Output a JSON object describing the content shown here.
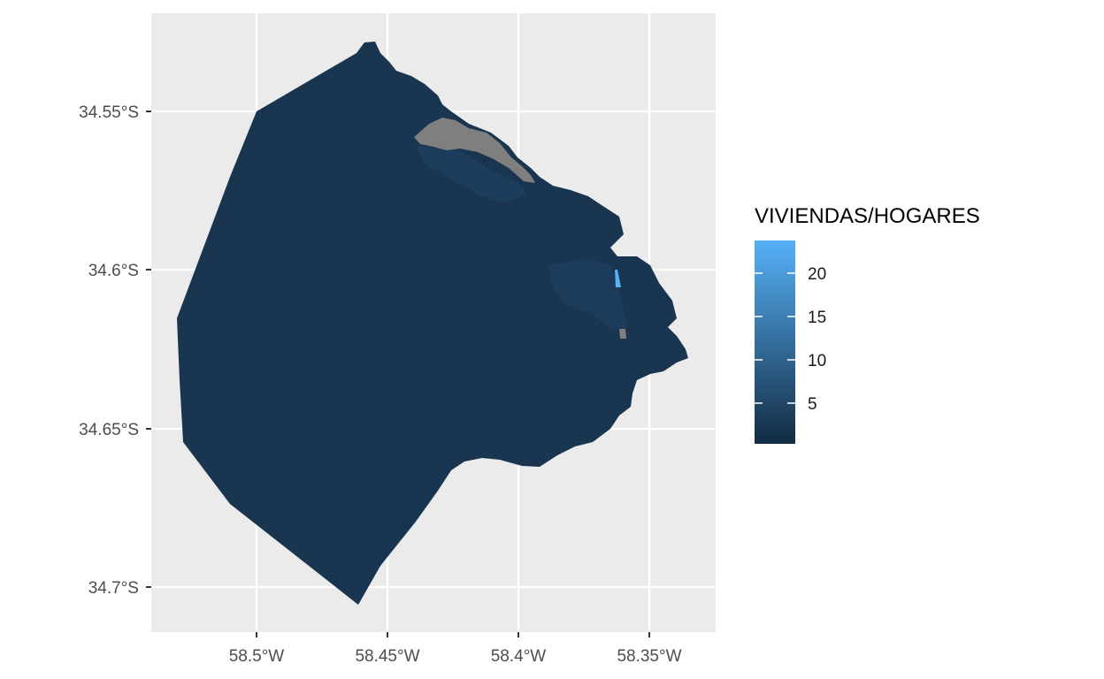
{
  "map": {
    "x_ticks": [
      "58.5°W",
      "58.45°W",
      "58.4°W",
      "58.35°W"
    ],
    "y_ticks": [
      "34.55°S",
      "34.6°S",
      "34.65°S",
      "34.7°S"
    ]
  },
  "legend": {
    "title": "VIVIENDAS/HOGARES",
    "labels": [
      "20",
      "15",
      "10",
      "5"
    ],
    "low_color": "#132B43",
    "high_color": "#56B1F7"
  },
  "colors": {
    "panel_background": "#EBEBEB",
    "grid": "#FFFFFF",
    "region_fill": "#1A3550",
    "missing_fill": "#7F7F7F",
    "high_value_fill": "#56B1F7"
  }
}
